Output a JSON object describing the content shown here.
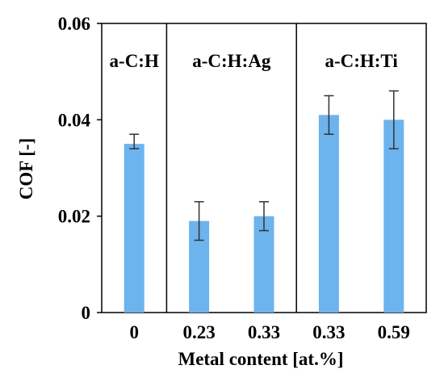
{
  "chart_data": {
    "type": "bar",
    "categories": [
      "0",
      "0.23",
      "0.33",
      "0.33",
      "0.59"
    ],
    "values": [
      0.035,
      0.019,
      0.02,
      0.041,
      0.04
    ],
    "error_low": [
      0.034,
      0.015,
      0.017,
      0.037,
      0.034
    ],
    "error_high": [
      0.037,
      0.023,
      0.023,
      0.045,
      0.046
    ],
    "groups": [
      {
        "label": "a-C:H",
        "categories": [
          0
        ]
      },
      {
        "label": "a-C:H:Ag",
        "categories": [
          1,
          2
        ]
      },
      {
        "label": "a-C:H:Ti",
        "categories": [
          3,
          4
        ]
      }
    ],
    "xlabel": "Metal content [at.%]",
    "ylabel": "COF [-]",
    "ylim": [
      0,
      0.06
    ],
    "yticks": [
      0,
      0.02,
      0.04,
      0.06
    ],
    "ytick_labels": [
      "0",
      "0.02",
      "0.04",
      "0.06"
    ],
    "bar_color": "#6db3ee",
    "grid": false,
    "legend": "none"
  }
}
